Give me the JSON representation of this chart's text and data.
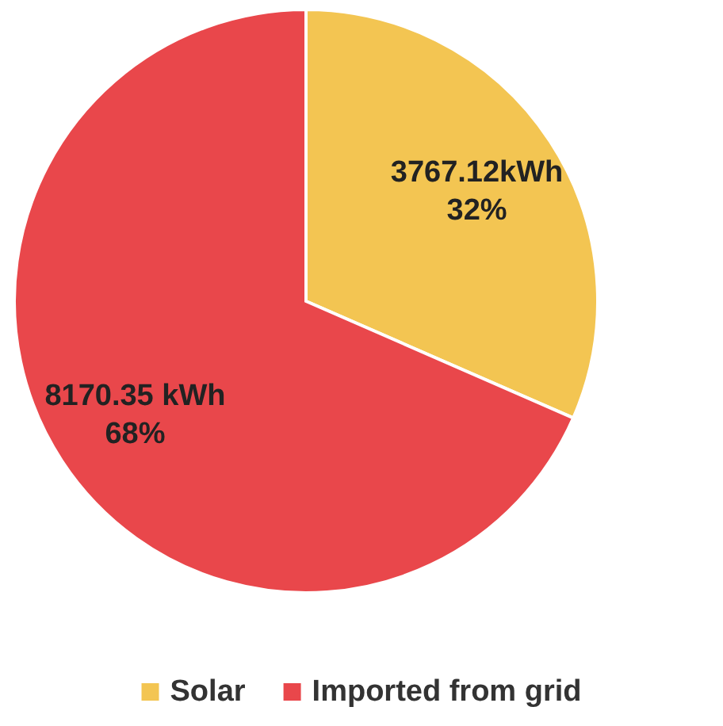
{
  "chart_data": {
    "type": "pie",
    "categories": [
      "Solar",
      "Imported from grid"
    ],
    "values": [
      3767.12,
      8170.35
    ],
    "colors": [
      "#f3c552",
      "#e9474b"
    ],
    "value_labels": [
      "3767.12kWh\n32%",
      "8170.35 kWh\n68%"
    ],
    "legend": "bottom"
  }
}
